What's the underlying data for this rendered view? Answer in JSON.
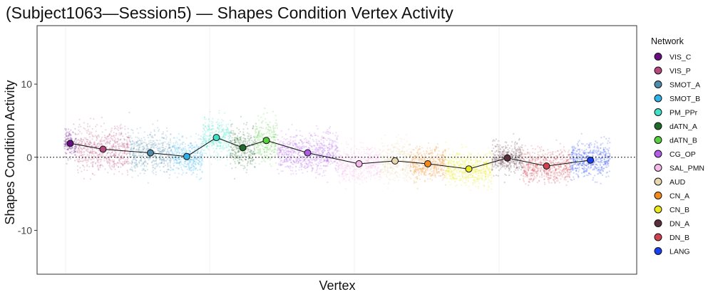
{
  "chart_data": {
    "type": "scatter",
    "title": "(Subject1063—Session5) — Shapes Condition Vertex Activity",
    "xlabel": "Vertex",
    "ylabel": "Shapes Condition Activity",
    "ylim": [
      -16,
      18
    ],
    "yticks": [
      -10,
      0,
      10
    ],
    "ytick_labels": [
      "-10",
      "0",
      "10"
    ],
    "reference_line_y": 0,
    "grid": false,
    "legend": {
      "title": "Network",
      "placement": "right"
    },
    "series": [
      {
        "name": "VIS_C",
        "color": "#6a0d83",
        "mean": 1.9,
        "spread": 1.6
      },
      {
        "name": "VIS_P",
        "color": "#b5487d",
        "mean": 1.1,
        "spread": 2.6
      },
      {
        "name": "SMOT_A",
        "color": "#4f8bab",
        "mean": 0.6,
        "spread": 2.4
      },
      {
        "name": "SMOT_B",
        "color": "#2fb2e8",
        "mean": 0.1,
        "spread": 2.0
      },
      {
        "name": "PM_PPr",
        "color": "#3fe0c8",
        "mean": 2.7,
        "spread": 2.2
      },
      {
        "name": "dATN_A",
        "color": "#1f6b2a",
        "mean": 1.3,
        "spread": 2.4
      },
      {
        "name": "dATN_B",
        "color": "#57cf3e",
        "mean": 2.3,
        "spread": 2.6
      },
      {
        "name": "CG_OP",
        "color": "#b05ee8",
        "mean": 0.6,
        "spread": 2.2
      },
      {
        "name": "SAL_PMN",
        "color": "#f5b8e8",
        "mean": -0.9,
        "spread": 2.0
      },
      {
        "name": "AUD",
        "color": "#e8d6ae",
        "mean": -0.5,
        "spread": 2.2
      },
      {
        "name": "CN_A",
        "color": "#f28a1c",
        "mean": -0.9,
        "spread": 1.8
      },
      {
        "name": "CN_B",
        "color": "#e8e81a",
        "mean": -1.6,
        "spread": 1.9
      },
      {
        "name": "DN_A",
        "color": "#5a2f3c",
        "mean": -0.1,
        "spread": 1.8
      },
      {
        "name": "DN_B",
        "color": "#d1404e",
        "mean": -1.2,
        "spread": 1.9
      },
      {
        "name": "LANG",
        "color": "#1a3ef2",
        "mean": -0.4,
        "spread": 2.0
      }
    ]
  }
}
